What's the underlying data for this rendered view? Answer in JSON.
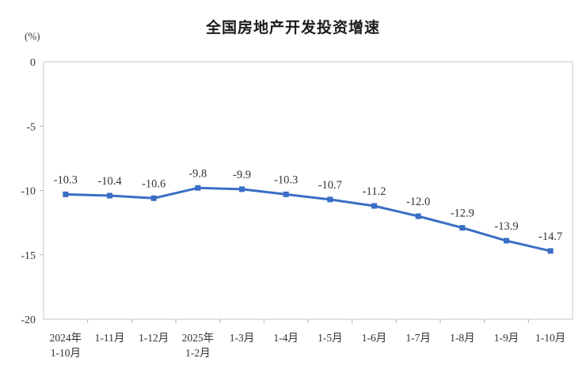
{
  "chart_data": {
    "type": "line",
    "title": "全国房地产开发投资增速",
    "unit": "(%)",
    "categories": [
      [
        "2024年",
        "1-10月"
      ],
      [
        "1-11月"
      ],
      [
        "1-12月"
      ],
      [
        "2025年",
        "1-2月"
      ],
      [
        "1-3月"
      ],
      [
        "1-4月"
      ],
      [
        "1-5月"
      ],
      [
        "1-6月"
      ],
      [
        "1-7月"
      ],
      [
        "1-8月"
      ],
      [
        "1-9月"
      ],
      [
        "1-10月"
      ]
    ],
    "values": [
      -10.3,
      -10.4,
      -10.6,
      -9.8,
      -9.9,
      -10.3,
      -10.7,
      -11.2,
      -12.0,
      -12.9,
      -13.9,
      -14.7
    ],
    "data_labels": [
      "-10.3",
      "-10.4",
      "-10.6",
      "-9.8",
      "-9.9",
      "-10.3",
      "-10.7",
      "-11.2",
      "-12.0",
      "-12.9",
      "-13.9",
      "-14.7"
    ],
    "y_tick_labels": [
      "0",
      "-5",
      "-10",
      "-15",
      "-20"
    ],
    "y_tick_values": [
      0,
      -5,
      -10,
      -15,
      -20
    ],
    "ylim": [
      -20,
      0
    ],
    "grid": false,
    "legend_position": "none",
    "series_color": "#3a6ec5",
    "axis_color": "#c8c8c8",
    "tick_color": "#b0b0b0",
    "text_color": "#333333",
    "title_color": "#1c1c1c"
  }
}
